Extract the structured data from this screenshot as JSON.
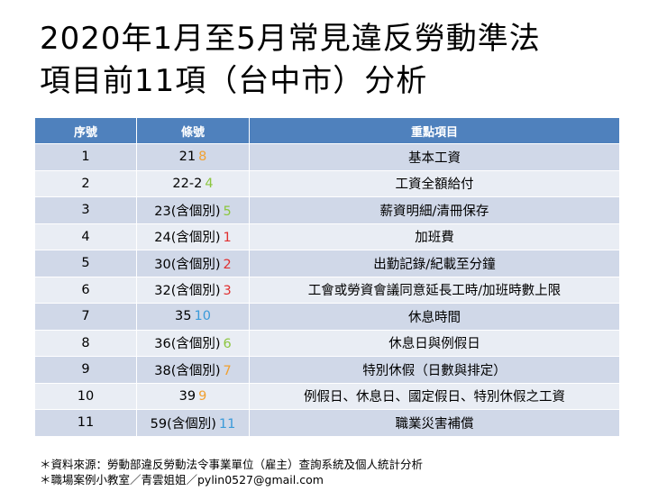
{
  "title": {
    "line1": "2020年1月至5月常見違反勞動準法",
    "line2": "項目前11項（台中市）分析"
  },
  "table": {
    "headers": [
      "序號",
      "條號",
      "重點項目"
    ],
    "rows": [
      {
        "no": "1",
        "art": "21",
        "suffix": "8",
        "suffix_color": "#f0a030",
        "item": "基本工資"
      },
      {
        "no": "2",
        "art": "22-2",
        "suffix": "4",
        "suffix_color": "#8cc63f",
        "item": "工資全額給付"
      },
      {
        "no": "3",
        "art": "23(含個別)",
        "suffix": "5",
        "suffix_color": "#8cc63f",
        "item": "薪資明細/清冊保存"
      },
      {
        "no": "4",
        "art": "24(含個別)",
        "suffix": "1",
        "suffix_color": "#e03030",
        "item": "加班費"
      },
      {
        "no": "5",
        "art": "30(含個別)",
        "suffix": "2",
        "suffix_color": "#e03030",
        "item": "出勤記錄/紀載至分鐘"
      },
      {
        "no": "6",
        "art": "32(含個別)",
        "suffix": "3",
        "suffix_color": "#e03030",
        "item": "工會或勞資會議同意延長工時/加班時數上限"
      },
      {
        "no": "7",
        "art": "35",
        "suffix": "10",
        "suffix_color": "#3a9ad9",
        "item": "休息時間"
      },
      {
        "no": "8",
        "art": "36(含個別)",
        "suffix": "6",
        "suffix_color": "#8cc63f",
        "item": "休息日與例假日"
      },
      {
        "no": "9",
        "art": "38(含個別)",
        "suffix": "7",
        "suffix_color": "#f0a030",
        "item": "特別休假（日數與排定）"
      },
      {
        "no": "10",
        "art": "39",
        "suffix": "9",
        "suffix_color": "#f0a030",
        "item": "例假日、休息日、國定假日、特別休假之工資"
      },
      {
        "no": "11",
        "art": "59(含個別)",
        "suffix": "11",
        "suffix_color": "#3a9ad9",
        "item": "職業災害補償"
      }
    ]
  },
  "notes": [
    "＊資料來源：勞動部違反勞動法令事業單位（雇主）查詢系統及個人統計分析",
    "＊職場案例小教室／青雲姐姐／pylin0527@gmail.com"
  ]
}
